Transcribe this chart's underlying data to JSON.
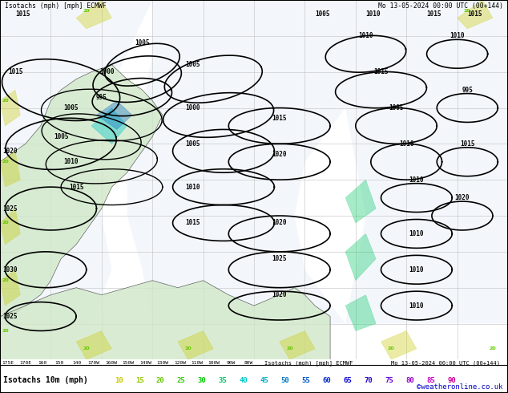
{
  "fig_width": 6.34,
  "fig_height": 4.9,
  "dpi": 100,
  "map_bg": "#b8d8b8",
  "title_left": "Isotachs (mph) [mph] ECMWF",
  "title_right": "Mo 13-05-2024 00:00 UTC (00+144)",
  "bottom_label": "Isotachs 10m (mph)",
  "credit": "©weatheronline.co.uk",
  "axis_ticks": [
    "175E",
    "170E",
    "160",
    "150",
    "140",
    "170W",
    "160W",
    "150W",
    "140W",
    "130W",
    "120W",
    "110W",
    "100W",
    "90W",
    "80W"
  ],
  "legend_values": [
    10,
    15,
    20,
    25,
    30,
    35,
    40,
    45,
    50,
    55,
    60,
    65,
    70,
    75,
    80,
    85,
    90
  ],
  "legend_colors": [
    "#c8c800",
    "#96c800",
    "#64c800",
    "#32c800",
    "#00c800",
    "#00c864",
    "#00c8c8",
    "#00aac8",
    "#0078c8",
    "#0050c8",
    "#0028c8",
    "#0000c8",
    "#2800c8",
    "#6400c8",
    "#9600c8",
    "#c800c8",
    "#c80096"
  ],
  "grid_color": "#c0c0c0",
  "isobar_color": "#000000",
  "coast_color": "#404040",
  "sea_color": "#e8f0f8",
  "land_color": "#d0e8c8"
}
